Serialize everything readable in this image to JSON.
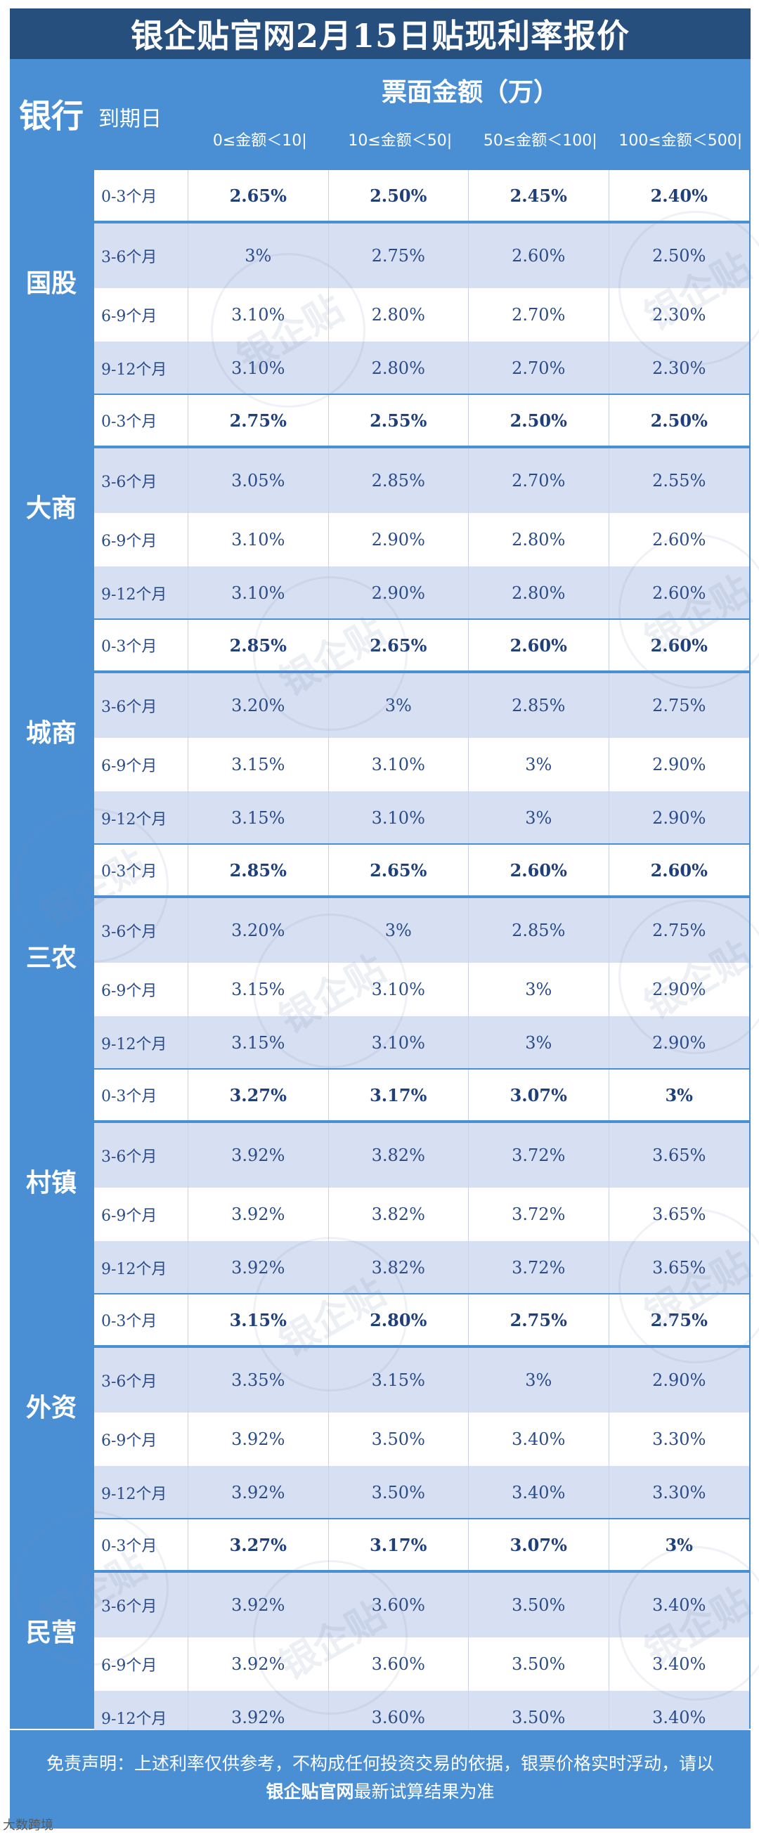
{
  "title": "银企贴官网2月15日贴现利率报价",
  "header": {
    "bank": "银行",
    "maturity": "到期日",
    "amount": "票面金额（万）",
    "ranges": [
      "0≤金额＜10|",
      "10≤金额＜50|",
      "50≤金额＜100|",
      "100≤金额＜500|"
    ]
  },
  "terms": [
    "0-3个月",
    "3-6个月",
    "6-9个月",
    "9-12个月"
  ],
  "groups": [
    {
      "bank": "国股",
      "rows": [
        [
          "2.65%",
          "2.50%",
          "2.45%",
          "2.40%"
        ],
        [
          "3%",
          "2.75%",
          "2.60%",
          "2.50%"
        ],
        [
          "3.10%",
          "2.80%",
          "2.70%",
          "2.30%"
        ],
        [
          "3.10%",
          "2.80%",
          "2.70%",
          "2.30%"
        ]
      ]
    },
    {
      "bank": "大商",
      "rows": [
        [
          "2.75%",
          "2.55%",
          "2.50%",
          "2.50%"
        ],
        [
          "3.05%",
          "2.85%",
          "2.70%",
          "2.55%"
        ],
        [
          "3.10%",
          "2.90%",
          "2.80%",
          "2.60%"
        ],
        [
          "3.10%",
          "2.90%",
          "2.80%",
          "2.60%"
        ]
      ]
    },
    {
      "bank": "城商",
      "rows": [
        [
          "2.85%",
          "2.65%",
          "2.60%",
          "2.60%"
        ],
        [
          "3.20%",
          "3%",
          "2.85%",
          "2.75%"
        ],
        [
          "3.15%",
          "3.10%",
          "3%",
          "2.90%"
        ],
        [
          "3.15%",
          "3.10%",
          "3%",
          "2.90%"
        ]
      ]
    },
    {
      "bank": "三农",
      "rows": [
        [
          "2.85%",
          "2.65%",
          "2.60%",
          "2.60%"
        ],
        [
          "3.20%",
          "3%",
          "2.85%",
          "2.75%"
        ],
        [
          "3.15%",
          "3.10%",
          "3%",
          "2.90%"
        ],
        [
          "3.15%",
          "3.10%",
          "3%",
          "2.90%"
        ]
      ]
    },
    {
      "bank": "村镇",
      "rows": [
        [
          "3.27%",
          "3.17%",
          "3.07%",
          "3%"
        ],
        [
          "3.92%",
          "3.82%",
          "3.72%",
          "3.65%"
        ],
        [
          "3.92%",
          "3.82%",
          "3.72%",
          "3.65%"
        ],
        [
          "3.92%",
          "3.82%",
          "3.72%",
          "3.65%"
        ]
      ]
    },
    {
      "bank": "外资",
      "rows": [
        [
          "3.15%",
          "2.80%",
          "2.75%",
          "2.75%"
        ],
        [
          "3.35%",
          "3.15%",
          "3%",
          "2.90%"
        ],
        [
          "3.92%",
          "3.50%",
          "3.40%",
          "3.30%"
        ],
        [
          "3.92%",
          "3.50%",
          "3.40%",
          "3.30%"
        ]
      ]
    },
    {
      "bank": "民营",
      "rows": [
        [
          "3.27%",
          "3.17%",
          "3.07%",
          "3%"
        ],
        [
          "3.92%",
          "3.60%",
          "3.50%",
          "3.40%"
        ],
        [
          "3.92%",
          "3.60%",
          "3.50%",
          "3.40%"
        ],
        [
          "3.92%",
          "3.60%",
          "3.50%",
          "3.40%"
        ]
      ]
    }
  ],
  "disclaimer": {
    "line1": "免责声明：上述利率仅供参考，不构成任何投资交易的依据，银票价格实时浮动，请以",
    "brand": "银企贴官网",
    "line2_rest": "最新试算结果为准"
  },
  "watermark": "银企贴",
  "corner_logo": "大数跨境"
}
